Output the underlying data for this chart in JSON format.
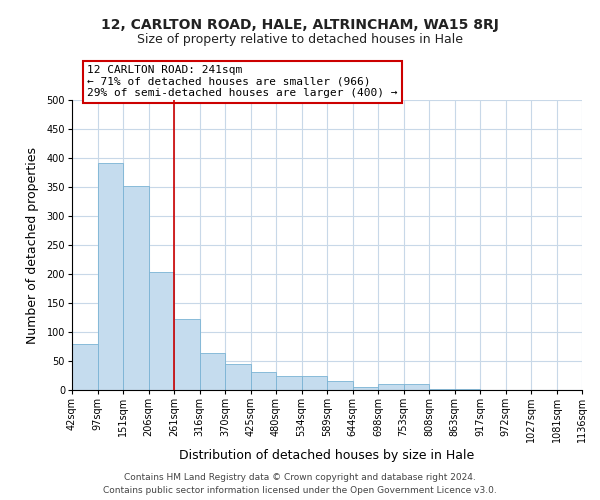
{
  "title1": "12, CARLTON ROAD, HALE, ALTRINCHAM, WA15 8RJ",
  "title2": "Size of property relative to detached houses in Hale",
  "xlabel": "Distribution of detached houses by size in Hale",
  "ylabel": "Number of detached properties",
  "bar_values": [
    80,
    392,
    351,
    204,
    122,
    63,
    45,
    31,
    24,
    25,
    16,
    6,
    11,
    10,
    1,
    1,
    0,
    0,
    0,
    0
  ],
  "bar_labels": [
    "42sqm",
    "97sqm",
    "151sqm",
    "206sqm",
    "261sqm",
    "316sqm",
    "370sqm",
    "425sqm",
    "480sqm",
    "534sqm",
    "589sqm",
    "644sqm",
    "698sqm",
    "753sqm",
    "808sqm",
    "863sqm",
    "917sqm",
    "972sqm",
    "1027sqm",
    "1081sqm",
    "1136sqm"
  ],
  "bar_color": "#c5dcee",
  "bar_edge_color": "#7ab3d4",
  "vline_color": "#cc0000",
  "vline_x_index": 4,
  "annotation_title": "12 CARLTON ROAD: 241sqm",
  "annotation_line1": "← 71% of detached houses are smaller (966)",
  "annotation_line2": "29% of semi-detached houses are larger (400) →",
  "annotation_box_color": "#ffffff",
  "annotation_box_edge": "#cc0000",
  "ylim": [
    0,
    500
  ],
  "yticks": [
    0,
    50,
    100,
    150,
    200,
    250,
    300,
    350,
    400,
    450,
    500
  ],
  "footer1": "Contains HM Land Registry data © Crown copyright and database right 2024.",
  "footer2": "Contains public sector information licensed under the Open Government Licence v3.0.",
  "background_color": "#ffffff",
  "grid_color": "#c8d8e8",
  "title1_fontsize": 10,
  "title2_fontsize": 9,
  "xlabel_fontsize": 9,
  "ylabel_fontsize": 9,
  "tick_fontsize": 7,
  "footer_fontsize": 6.5,
  "annotation_fontsize": 8
}
